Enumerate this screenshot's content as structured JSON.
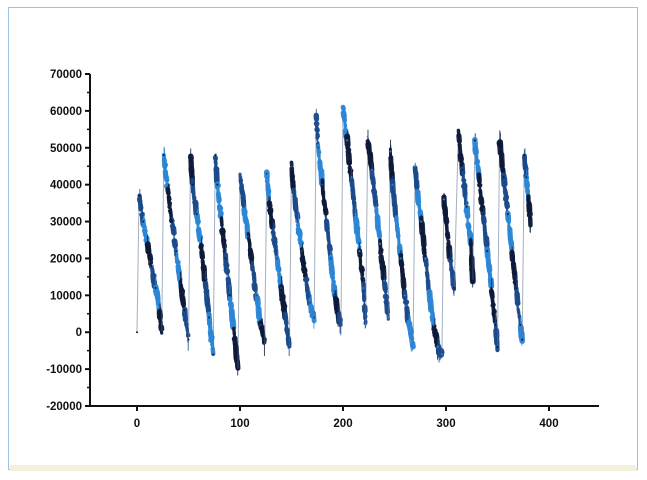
{
  "chart_data": {
    "type": "line",
    "title": "",
    "xlabel": "",
    "ylabel": "",
    "xlim": [
      -40,
      440
    ],
    "ylim": [
      -20000,
      70000
    ],
    "x_ticks": [
      0,
      100,
      200,
      300,
      400
    ],
    "x_tick_labels": [
      "0",
      "100",
      "200",
      "300",
      "400"
    ],
    "y_ticks": [
      -20000,
      -10000,
      0,
      10000,
      20000,
      30000,
      40000,
      50000,
      60000,
      70000
    ],
    "y_tick_labels": [
      "-20000",
      "-10000",
      "0",
      "10000",
      "20000",
      "30000",
      "40000",
      "50000",
      "60000",
      "70000"
    ],
    "grid": false,
    "legend": false,
    "colors": {
      "series_dark": "#0d1a3a",
      "series_mid": "#1a4a8a",
      "series_light": "#2b86d6",
      "axis": "#111111",
      "frame_border": "#9fc3de"
    },
    "series": [
      {
        "x": [
          0,
          2,
          6,
          10,
          14,
          18,
          22,
          24,
          26,
          30,
          34,
          38,
          42,
          46,
          50,
          52,
          54,
          58,
          62,
          66,
          70,
          74,
          76,
          78,
          82,
          86,
          90,
          94,
          98,
          100
        ],
        "y": [
          0,
          37000,
          30000,
          24000,
          18000,
          12000,
          6000,
          0,
          48000,
          38000,
          30000,
          22000,
          14000,
          6000,
          -2000,
          48000,
          40000,
          32000,
          24000,
          14000,
          4000,
          -6000,
          48000,
          40000,
          30000,
          20000,
          10000,
          0,
          -10000,
          42000
        ]
      },
      {
        "x": [
          100,
          104,
          108,
          112,
          116,
          120,
          124,
          126,
          128,
          132,
          136,
          140,
          144,
          148,
          150,
          152,
          156,
          160,
          164,
          168,
          172,
          174,
          176,
          180,
          184,
          188,
          192,
          196,
          198,
          200
        ],
        "y": [
          42000,
          34000,
          26000,
          18000,
          10000,
          2000,
          -3000,
          43000,
          36000,
          28000,
          20000,
          12000,
          4000,
          -4000,
          45000,
          38000,
          30000,
          22000,
          14000,
          8000,
          4000,
          58000,
          50000,
          40000,
          30000,
          20000,
          10000,
          4000,
          2000,
          61000
        ]
      },
      {
        "x": [
          200,
          204,
          208,
          212,
          216,
          220,
          222,
          224,
          228,
          232,
          236,
          240,
          244,
          246,
          248,
          252,
          256,
          260,
          264,
          268,
          270,
          272,
          276,
          280,
          284,
          288,
          292,
          296,
          298,
          300
        ],
        "y": [
          61000,
          52000,
          42000,
          32000,
          22000,
          12000,
          2000,
          53000,
          44000,
          34000,
          24000,
          14000,
          4000,
          49000,
          40000,
          30000,
          20000,
          10000,
          2000,
          -4000,
          45000,
          38000,
          30000,
          20000,
          10000,
          2000,
          -4000,
          -6000,
          36000,
          30000
        ]
      },
      {
        "x": [
          300,
          304,
          308,
          312,
          316,
          320,
          324,
          326,
          328,
          332,
          336,
          340,
          344,
          348,
          350,
          352,
          356,
          360,
          364,
          368,
          372,
          374,
          376,
          378,
          380,
          382
        ],
        "y": [
          30000,
          20000,
          12000,
          54000,
          44000,
          34000,
          24000,
          14000,
          52000,
          42000,
          32000,
          22000,
          12000,
          2000,
          -4000,
          52000,
          42000,
          32000,
          22000,
          12000,
          2000,
          -2000,
          48000,
          42000,
          36000,
          30000
        ]
      }
    ]
  }
}
